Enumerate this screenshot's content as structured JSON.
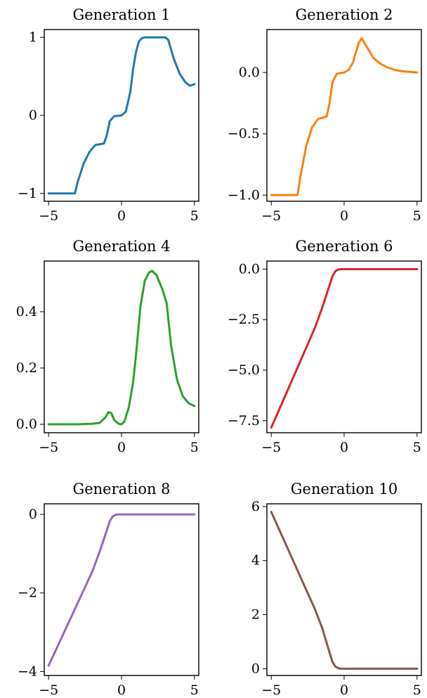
{
  "chart_data": [
    {
      "type": "line",
      "title": "Generation 1",
      "color": "#1f77b4",
      "xlim": [
        -5.3,
        5.3
      ],
      "ylim": [
        -1.1,
        1.1
      ],
      "xticks": [
        -5,
        0,
        5
      ],
      "xtick_labels": [
        "−5",
        "0",
        "5"
      ],
      "yticks": [
        -1,
        0,
        1
      ],
      "ytick_labels": [
        "−1",
        "0",
        "1"
      ],
      "series": [
        {
          "x": [
            -5,
            -3.2,
            -3,
            -2.6,
            -2.2,
            -1.8,
            -1.5,
            -1.2,
            -1.0,
            -0.8,
            -0.5,
            0,
            0.3,
            0.6,
            0.8,
            1.0,
            1.2,
            1.4,
            1.6,
            2.0,
            2.5,
            3.0,
            3.2,
            3.6,
            4.0,
            4.4,
            4.7,
            5.0
          ],
          "y": [
            -1,
            -1,
            -0.85,
            -0.62,
            -0.47,
            -0.38,
            -0.37,
            -0.36,
            -0.25,
            -0.07,
            -0.01,
            0,
            0.05,
            0.3,
            0.6,
            0.82,
            0.95,
            0.99,
            1,
            1,
            1,
            1,
            0.97,
            0.72,
            0.53,
            0.42,
            0.38,
            0.4
          ]
        }
      ]
    },
    {
      "type": "line",
      "title": "Generation 2",
      "color": "#ff7f0e",
      "xlim": [
        -5.3,
        5.3
      ],
      "ylim": [
        -1.05,
        0.35
      ],
      "xticks": [
        -5,
        0,
        5
      ],
      "xtick_labels": [
        "−5",
        "0",
        "5"
      ],
      "yticks": [
        -1.0,
        -0.5,
        0.0
      ],
      "ytick_labels": [
        "−1.0",
        "−0.5",
        "0.0"
      ],
      "series": [
        {
          "x": [
            -5,
            -3.2,
            -3,
            -2.6,
            -2.2,
            -1.8,
            -1.5,
            -1.2,
            -1.0,
            -0.8,
            -0.5,
            0,
            0.3,
            0.6,
            0.8,
            1.0,
            1.2,
            1.5,
            2.0,
            2.5,
            3.0,
            3.5,
            4.0,
            4.5,
            5.0
          ],
          "y": [
            -1,
            -1,
            -0.85,
            -0.6,
            -0.45,
            -0.38,
            -0.37,
            -0.36,
            -0.25,
            -0.08,
            -0.01,
            0,
            0.02,
            0.08,
            0.16,
            0.24,
            0.28,
            0.22,
            0.12,
            0.07,
            0.04,
            0.02,
            0.01,
            0.005,
            0
          ]
        }
      ]
    },
    {
      "type": "line",
      "title": "Generation 4",
      "color": "#2ca02c",
      "xlim": [
        -5.3,
        5.3
      ],
      "ylim": [
        -0.03,
        0.58
      ],
      "xticks": [
        -5,
        0,
        5
      ],
      "xtick_labels": [
        "−5",
        "0",
        "5"
      ],
      "yticks": [
        0.0,
        0.2,
        0.4
      ],
      "ytick_labels": [
        "0.0",
        "0.2",
        "0.4"
      ],
      "series": [
        {
          "x": [
            -5,
            -4,
            -3,
            -2,
            -1.5,
            -1.1,
            -0.9,
            -0.7,
            -0.5,
            -0.2,
            0,
            0.2,
            0.5,
            0.8,
            1.0,
            1.3,
            1.6,
            1.9,
            2.1,
            2.4,
            2.8,
            3.1,
            3.4,
            3.8,
            4.2,
            4.6,
            5.0
          ],
          "y": [
            0,
            0,
            0,
            0.002,
            0.005,
            0.025,
            0.043,
            0.04,
            0.015,
            0.002,
            0,
            0.01,
            0.06,
            0.15,
            0.25,
            0.42,
            0.51,
            0.54,
            0.545,
            0.53,
            0.48,
            0.43,
            0.28,
            0.16,
            0.1,
            0.075,
            0.065
          ]
        }
      ]
    },
    {
      "type": "line",
      "title": "Generation 6",
      "color": "#d62728",
      "xlim": [
        -5.3,
        5.3
      ],
      "ylim": [
        -8.1,
        0.4
      ],
      "xticks": [
        -5,
        0,
        5
      ],
      "xtick_labels": [
        "−5",
        "0",
        "5"
      ],
      "yticks": [
        0.0,
        -2.5,
        -5.0,
        -7.5
      ],
      "ytick_labels": [
        "0.0",
        "−2.5",
        "−5.0",
        "−7.5"
      ],
      "series": [
        {
          "x": [
            -5,
            -4,
            -3,
            -2,
            -1.5,
            -1.0,
            -0.8,
            -0.6,
            -0.4,
            -0.2,
            0,
            1,
            2,
            3,
            4,
            5
          ],
          "y": [
            -7.85,
            -6.2,
            -4.55,
            -2.9,
            -1.9,
            -0.8,
            -0.35,
            -0.1,
            -0.02,
            0,
            0,
            0,
            0,
            0,
            0,
            0
          ]
        }
      ]
    },
    {
      "type": "line",
      "title": "Generation 8",
      "color": "#9467bd",
      "xlim": [
        -5.3,
        5.3
      ],
      "ylim": [
        -4.1,
        0.27
      ],
      "xticks": [
        -5,
        0,
        5
      ],
      "xtick_labels": [
        "−5",
        "0",
        "5"
      ],
      "yticks": [
        0,
        -2,
        -4
      ],
      "ytick_labels": [
        "0",
        "−2",
        "−4"
      ],
      "series": [
        {
          "x": [
            -5,
            -4,
            -3,
            -2,
            -1.5,
            -1.0,
            -0.8,
            -0.6,
            -0.4,
            -0.2,
            0,
            1,
            2,
            3,
            4,
            5
          ],
          "y": [
            -3.85,
            -3.05,
            -2.25,
            -1.45,
            -0.95,
            -0.4,
            -0.17,
            -0.05,
            -0.01,
            0,
            0,
            0,
            0,
            0,
            0,
            0
          ]
        }
      ]
    },
    {
      "type": "line",
      "title": "Generation 10",
      "color": "#8c564b",
      "xlim": [
        -5.3,
        5.3
      ],
      "ylim": [
        -0.25,
        6.1
      ],
      "xticks": [
        -5,
        0,
        5
      ],
      "xtick_labels": [
        "−5",
        "0",
        "5"
      ],
      "yticks": [
        0,
        2,
        4,
        6
      ],
      "ytick_labels": [
        "0",
        "2",
        "4",
        "6"
      ],
      "series": [
        {
          "x": [
            -5,
            -4,
            -3,
            -2,
            -1.5,
            -1.0,
            -0.8,
            -0.6,
            -0.4,
            -0.2,
            0,
            1,
            2,
            3,
            4,
            5
          ],
          "y": [
            5.8,
            4.6,
            3.4,
            2.2,
            1.5,
            0.6,
            0.25,
            0.08,
            0.02,
            0,
            0,
            0,
            0,
            0,
            0,
            0
          ]
        }
      ]
    }
  ]
}
